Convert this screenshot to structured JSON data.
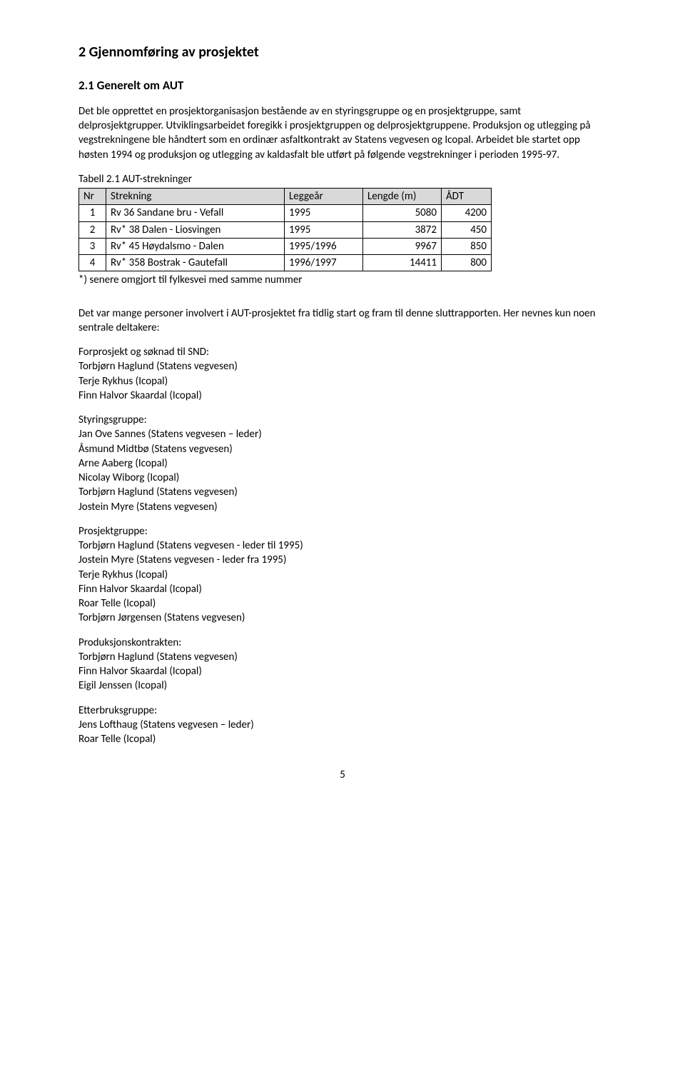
{
  "heading1": "2  Gjennomføring av prosjektet",
  "heading2": "2.1    Generelt om AUT",
  "para1": "Det ble opprettet en prosjektorganisasjon bestående av en styringsgruppe og en prosjektgruppe, samt delprosjektgrupper. Utviklingsarbeidet foregikk i prosjektgruppen og delprosjektgruppene. Produksjon og utlegging på vegstrekningene ble håndtert som en ordinær asfaltkontrakt av Statens vegvesen og Icopal. Arbeidet ble startet opp høsten 1994 og produksjon og utlegging av kaldasfalt ble utført på følgende vegstrekninger i perioden 1995-97.",
  "table": {
    "caption": "Tabell 2.1 AUT-strekninger",
    "columns": [
      "Nr",
      "Strekning",
      "Leggeår",
      "Lengde (m)",
      "ÅDT"
    ],
    "rows": [
      [
        "1",
        "Rv 36 Sandane bru - Vefall",
        "1995",
        "5080",
        "4200"
      ],
      [
        "2",
        "Rv* 38 Dalen - Liosvingen",
        "1995",
        "3872",
        "450"
      ],
      [
        "3",
        "Rv* 45 Høydalsmo - Dalen",
        "1995/1996",
        "9967",
        "850"
      ],
      [
        "4",
        "Rv* 358 Bostrak - Gautefall",
        "1996/1997",
        "14411",
        "800"
      ]
    ],
    "header_bg": "#d9d9d9",
    "border_color": "#000000"
  },
  "footnote": "*) senere omgjort til fylkesvei med samme nummer",
  "para2": "Det var mange personer involvert i AUT-prosjektet fra tidlig start og fram til denne sluttrapporten. Her nevnes kun noen sentrale deltakere:",
  "groups": [
    {
      "title": "Forprosjekt og søknad til SND:",
      "lines": [
        "Torbjørn Haglund (Statens vegvesen)",
        "Terje Rykhus (Icopal)",
        "Finn Halvor Skaardal (Icopal)"
      ]
    },
    {
      "title": "Styringsgruppe:",
      "lines": [
        "Jan Ove Sannes (Statens vegvesen – leder)",
        "Åsmund Midtbø (Statens vegvesen)",
        "Arne Aaberg (Icopal)",
        "Nicolay Wiborg (Icopal)",
        "Torbjørn Haglund (Statens vegvesen)",
        "Jostein Myre (Statens vegvesen)"
      ]
    },
    {
      "title": "Prosjektgruppe:",
      "lines": [
        "Torbjørn Haglund (Statens vegvesen - leder til 1995)",
        "Jostein Myre (Statens vegvesen - leder fra 1995)",
        "Terje Rykhus (Icopal)",
        "Finn Halvor Skaardal (Icopal)",
        "Roar Telle (Icopal)",
        "Torbjørn Jørgensen (Statens vegvesen)"
      ]
    },
    {
      "title": "Produksjonskontrakten:",
      "lines": [
        "Torbjørn Haglund (Statens vegvesen)",
        "Finn Halvor Skaardal (Icopal)",
        "Eigil Jenssen (Icopal)"
      ]
    },
    {
      "title": "Etterbruksgruppe:",
      "lines": [
        "Jens Lofthaug (Statens vegvesen – leder)",
        "Roar Telle (Icopal)"
      ]
    }
  ],
  "pageNumber": "5"
}
